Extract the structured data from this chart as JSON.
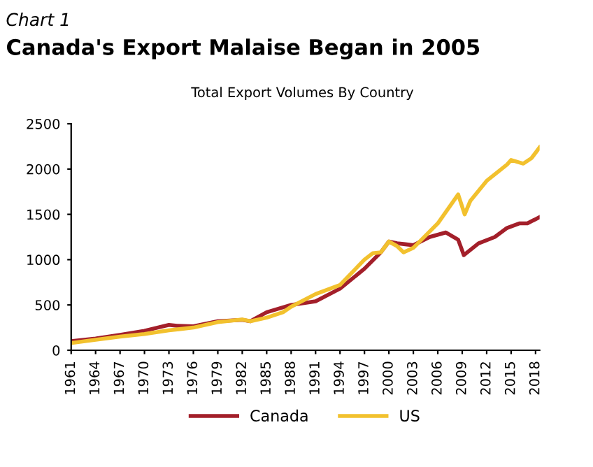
{
  "chart_data": {
    "type": "line",
    "subtitle": "Chart 1",
    "title": "Canada's Export Malaise Began in 2005",
    "annotations": [
      "Total Export Volumes By Country"
    ],
    "series": [
      {
        "name": "Canada",
        "color": "#a31f2a",
        "x": [
          1961,
          1964,
          1967,
          1970,
          1973,
          1974,
          1976,
          1979,
          1982,
          1983,
          1985,
          1988,
          1991,
          1994,
          1997,
          1999,
          2000,
          2001,
          2002,
          2003,
          2005,
          2007,
          2008.5,
          2009.2,
          2011,
          2013,
          2014.5,
          2016,
          2017,
          2018.5
        ],
        "values": [
          100,
          130,
          170,
          215,
          280,
          270,
          265,
          320,
          335,
          320,
          420,
          500,
          540,
          680,
          900,
          1080,
          1200,
          1180,
          1170,
          1160,
          1250,
          1300,
          1220,
          1050,
          1180,
          1250,
          1350,
          1400,
          1400,
          1470
        ]
      },
      {
        "name": "US",
        "color": "#f2c12e",
        "x": [
          1961,
          1964,
          1967,
          1970,
          1973,
          1976,
          1979,
          1982,
          1983,
          1985,
          1987,
          1988,
          1991,
          1994,
          1997,
          1998,
          1999,
          2000,
          2001,
          2001.8,
          2003,
          2004,
          2006,
          2008.5,
          2009.3,
          2010,
          2012,
          2014.5,
          2015,
          2016.5,
          2017.5,
          2018.5
        ],
        "values": [
          80,
          115,
          150,
          180,
          220,
          250,
          310,
          340,
          320,
          360,
          420,
          480,
          620,
          720,
          1000,
          1070,
          1080,
          1200,
          1150,
          1080,
          1130,
          1220,
          1400,
          1720,
          1500,
          1650,
          1870,
          2050,
          2100,
          2060,
          2120,
          2240
        ]
      }
    ],
    "xlim": [
      1961,
      2018.5
    ],
    "xticks": [
      1961,
      1964,
      1967,
      1970,
      1973,
      1976,
      1979,
      1982,
      1985,
      1988,
      1991,
      1994,
      1997,
      2000,
      2003,
      2006,
      2009,
      2012,
      2015,
      2018
    ],
    "ylim": [
      0,
      2500
    ],
    "yticks": [
      0,
      500,
      1000,
      1500,
      2000,
      2500
    ],
    "grid": false,
    "legend": "bottom",
    "line_style": "solid",
    "marker": "none"
  }
}
